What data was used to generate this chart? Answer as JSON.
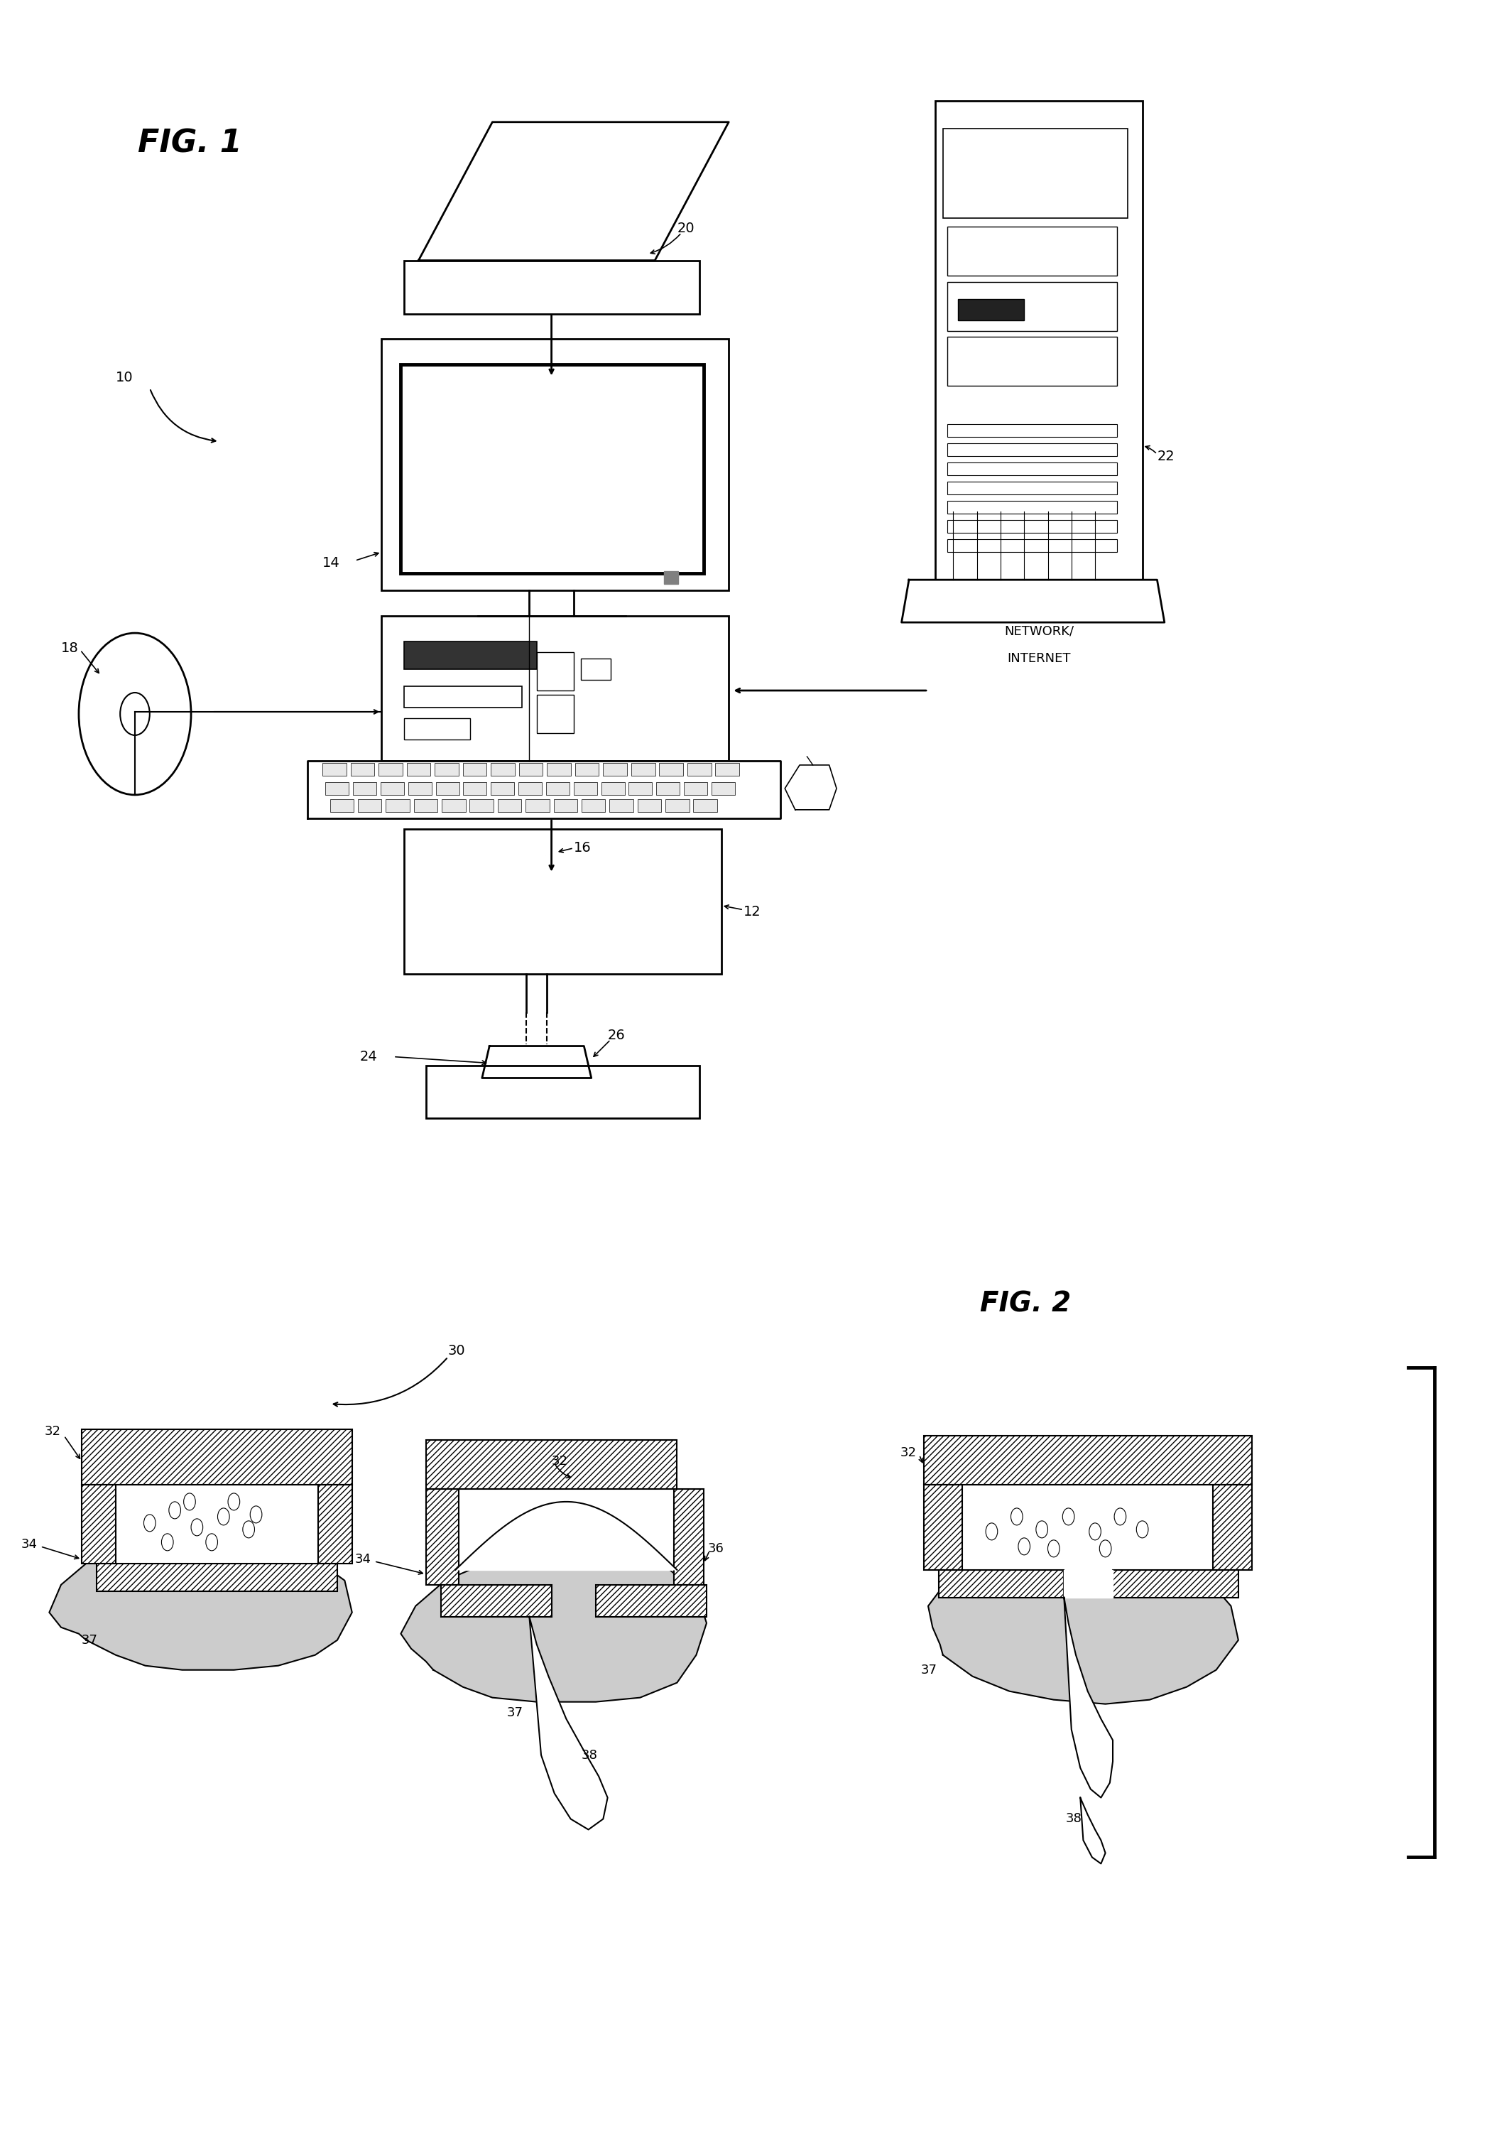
{
  "fig_width": 20.94,
  "fig_height": 30.11,
  "bg_color": "#ffffff",
  "line_color": "#000000",
  "fig1_label": "FIG. 1",
  "fig2_label": "FIG. 2"
}
